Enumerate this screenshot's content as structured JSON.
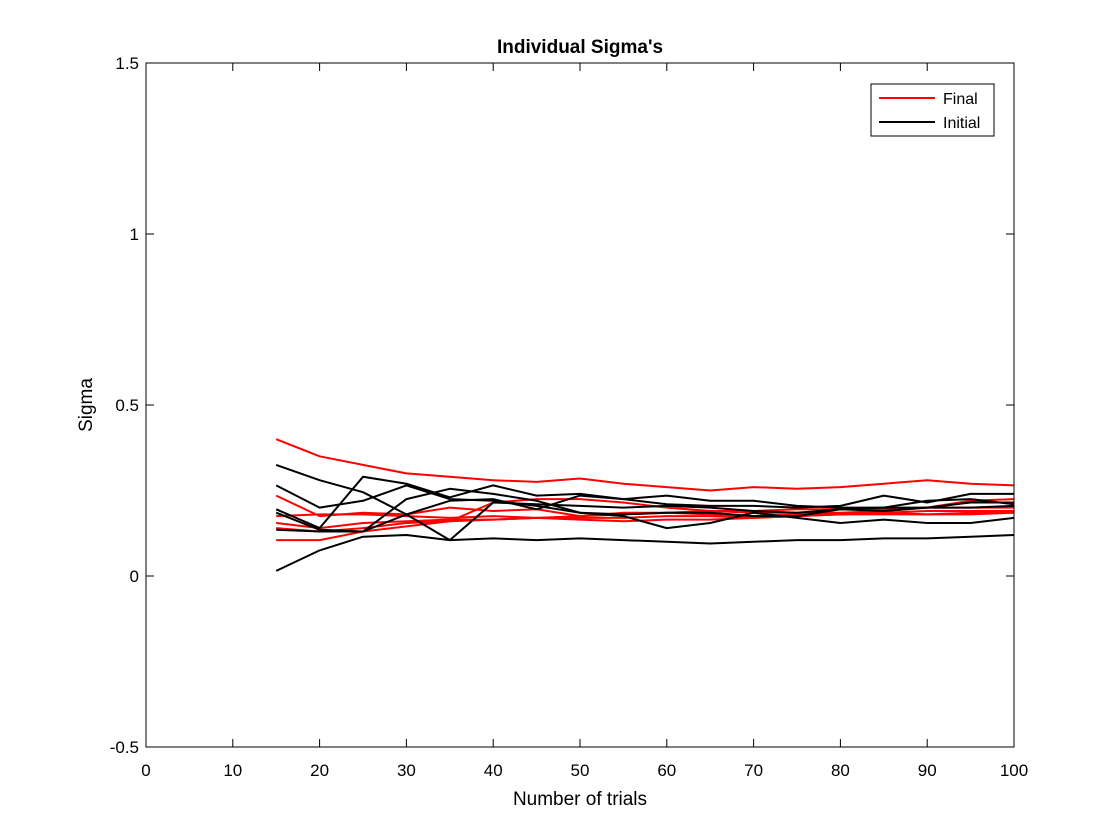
{
  "chart_data": {
    "type": "line",
    "title": "Individual Sigma's",
    "xlabel": "Number of trials",
    "ylabel": "Sigma",
    "xlim": [
      0,
      100
    ],
    "ylim": [
      -0.5,
      1.5
    ],
    "xticks": [
      "0",
      "10",
      "20",
      "30",
      "40",
      "50",
      "60",
      "70",
      "80",
      "90",
      "100"
    ],
    "yticks": [
      "-0.5",
      "0",
      "0.5",
      "1",
      "1.5"
    ],
    "grid": false,
    "legend": {
      "position": "top-right",
      "entries": [
        {
          "label": "Final",
          "color": "#ff0000"
        },
        {
          "label": "Initial",
          "color": "#000000"
        }
      ]
    },
    "x": [
      15,
      20,
      25,
      30,
      35,
      40,
      45,
      50,
      55,
      60,
      65,
      70,
      75,
      80,
      85,
      90,
      95,
      100
    ],
    "series": [
      {
        "group": "Final",
        "color": "#ff0000",
        "values": [
          0.4,
          0.35,
          0.325,
          0.3,
          0.29,
          0.28,
          0.275,
          0.285,
          0.27,
          0.26,
          0.25,
          0.26,
          0.255,
          0.26,
          0.27,
          0.28,
          0.27,
          0.265
        ]
      },
      {
        "group": "Final",
        "color": "#ff0000",
        "values": [
          0.235,
          0.175,
          0.185,
          0.18,
          0.2,
          0.19,
          0.195,
          0.175,
          0.185,
          0.185,
          0.18,
          0.175,
          0.18,
          0.18,
          0.185,
          0.18,
          0.18,
          0.185
        ]
      },
      {
        "group": "Final",
        "color": "#ff0000",
        "values": [
          0.175,
          0.18,
          0.18,
          0.175,
          0.17,
          0.175,
          0.17,
          0.17,
          0.17,
          0.175,
          0.175,
          0.17,
          0.175,
          0.18,
          0.18,
          0.18,
          0.185,
          0.19
        ]
      },
      {
        "group": "Final",
        "color": "#ff0000",
        "values": [
          0.155,
          0.14,
          0.155,
          0.16,
          0.165,
          0.165,
          0.17,
          0.175,
          0.18,
          0.185,
          0.19,
          0.19,
          0.195,
          0.195,
          0.195,
          0.2,
          0.2,
          0.2
        ]
      },
      {
        "group": "Final",
        "color": "#ff0000",
        "values": [
          0.105,
          0.105,
          0.13,
          0.145,
          0.16,
          0.165,
          0.17,
          0.165,
          0.16,
          0.165,
          0.165,
          0.17,
          0.175,
          0.18,
          0.185,
          0.19,
          0.19,
          0.19
        ]
      },
      {
        "group": "Final",
        "color": "#ff0000",
        "values": [
          0.14,
          0.13,
          0.14,
          0.155,
          0.16,
          0.215,
          0.225,
          0.225,
          0.215,
          0.2,
          0.19,
          0.185,
          0.185,
          0.185,
          0.19,
          0.2,
          0.22,
          0.225
        ]
      },
      {
        "group": "Initial",
        "color": "#000000",
        "values": [
          0.325,
          0.28,
          0.245,
          0.18,
          0.22,
          0.225,
          0.195,
          0.235,
          0.225,
          0.235,
          0.22,
          0.22,
          0.205,
          0.2,
          0.2,
          0.22,
          0.225,
          0.21
        ]
      },
      {
        "group": "Initial",
        "color": "#000000",
        "values": [
          0.265,
          0.2,
          0.22,
          0.265,
          0.225,
          0.22,
          0.205,
          0.185,
          0.175,
          0.14,
          0.155,
          0.185,
          0.17,
          0.155,
          0.165,
          0.155,
          0.155,
          0.17
        ]
      },
      {
        "group": "Initial",
        "color": "#000000",
        "values": [
          0.195,
          0.14,
          0.29,
          0.27,
          0.23,
          0.265,
          0.235,
          0.24,
          0.225,
          0.21,
          0.205,
          0.205,
          0.2,
          0.205,
          0.235,
          0.215,
          0.24,
          0.24
        ]
      },
      {
        "group": "Initial",
        "color": "#000000",
        "values": [
          0.185,
          0.135,
          0.13,
          0.225,
          0.255,
          0.24,
          0.22,
          0.185,
          0.18,
          0.185,
          0.185,
          0.175,
          0.175,
          0.195,
          0.2,
          0.2,
          0.2,
          0.205
        ]
      },
      {
        "group": "Initial",
        "color": "#000000",
        "values": [
          0.135,
          0.13,
          0.13,
          0.18,
          0.105,
          0.215,
          0.21,
          0.205,
          0.2,
          0.205,
          0.2,
          0.19,
          0.185,
          0.195,
          0.19,
          0.2,
          0.215,
          0.215
        ]
      },
      {
        "group": "Initial",
        "color": "#000000",
        "values": [
          0.015,
          0.075,
          0.115,
          0.12,
          0.105,
          0.11,
          0.105,
          0.11,
          0.105,
          0.1,
          0.095,
          0.1,
          0.105,
          0.105,
          0.11,
          0.11,
          0.115,
          0.12
        ]
      }
    ]
  }
}
